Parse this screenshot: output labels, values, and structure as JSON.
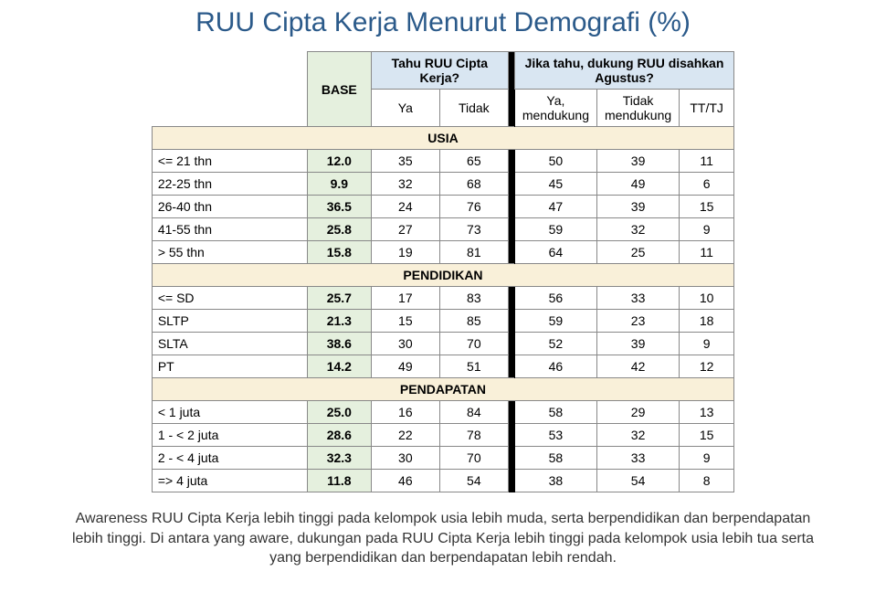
{
  "title": "RUU Cipta Kerja Menurut Demografi (%)",
  "colors": {
    "title": "#2b5a8a",
    "base_bg": "#e5f0de",
    "question_bg": "#d9e6f2",
    "section_bg": "#f9f0d9",
    "separator": "#000000",
    "border": "#888888",
    "background": "#ffffff"
  },
  "headers": {
    "base": "BASE",
    "q1": "Tahu RUU Cipta Kerja?",
    "q1_ya": "Ya",
    "q1_tidak": "Tidak",
    "q2": "Jika tahu, dukung RUU disahkan Agustus?",
    "q2_ya": "Ya, mendukung",
    "q2_tidak": "Tidak mendukung",
    "q2_tt": "TT/TJ"
  },
  "sections": [
    {
      "name": "USIA",
      "rows": [
        {
          "label": "<= 21 thn",
          "base": "12.0",
          "ya": "35",
          "tidak": "65",
          "d_ya": "50",
          "d_tidak": "39",
          "tt": "11"
        },
        {
          "label": "22-25 thn",
          "base": "9.9",
          "ya": "32",
          "tidak": "68",
          "d_ya": "45",
          "d_tidak": "49",
          "tt": "6"
        },
        {
          "label": "26-40 thn",
          "base": "36.5",
          "ya": "24",
          "tidak": "76",
          "d_ya": "47",
          "d_tidak": "39",
          "tt": "15"
        },
        {
          "label": "41-55 thn",
          "base": "25.8",
          "ya": "27",
          "tidak": "73",
          "d_ya": "59",
          "d_tidak": "32",
          "tt": "9"
        },
        {
          "label": "> 55 thn",
          "base": "15.8",
          "ya": "19",
          "tidak": "81",
          "d_ya": "64",
          "d_tidak": "25",
          "tt": "11"
        }
      ]
    },
    {
      "name": "PENDIDIKAN",
      "rows": [
        {
          "label": "<= SD",
          "base": "25.7",
          "ya": "17",
          "tidak": "83",
          "d_ya": "56",
          "d_tidak": "33",
          "tt": "10"
        },
        {
          "label": "SLTP",
          "base": "21.3",
          "ya": "15",
          "tidak": "85",
          "d_ya": "59",
          "d_tidak": "23",
          "tt": "18"
        },
        {
          "label": "SLTA",
          "base": "38.6",
          "ya": "30",
          "tidak": "70",
          "d_ya": "52",
          "d_tidak": "39",
          "tt": "9"
        },
        {
          "label": "PT",
          "base": "14.2",
          "ya": "49",
          "tidak": "51",
          "d_ya": "46",
          "d_tidak": "42",
          "tt": "12"
        }
      ]
    },
    {
      "name": "PENDAPATAN",
      "rows": [
        {
          "label": "< 1 juta",
          "base": "25.0",
          "ya": "16",
          "tidak": "84",
          "d_ya": "58",
          "d_tidak": "29",
          "tt": "13"
        },
        {
          "label": "1 - < 2 juta",
          "base": "28.6",
          "ya": "22",
          "tidak": "78",
          "d_ya": "53",
          "d_tidak": "32",
          "tt": "15"
        },
        {
          "label": "2 - < 4 juta",
          "base": "32.3",
          "ya": "30",
          "tidak": "70",
          "d_ya": "58",
          "d_tidak": "33",
          "tt": "9"
        },
        {
          "label": "=> 4 juta",
          "base": "11.8",
          "ya": "46",
          "tidak": "54",
          "d_ya": "38",
          "d_tidak": "54",
          "tt": "8"
        }
      ]
    }
  ],
  "footnote": "Awareness RUU Cipta Kerja lebih tinggi pada kelompok usia lebih muda, serta berpendidikan dan berpendapatan lebih tinggi. Di antara yang aware, dukungan pada RUU Cipta Kerja lebih tinggi pada kelompok usia lebih tua serta yang berpendidikan dan berpendapatan lebih rendah."
}
